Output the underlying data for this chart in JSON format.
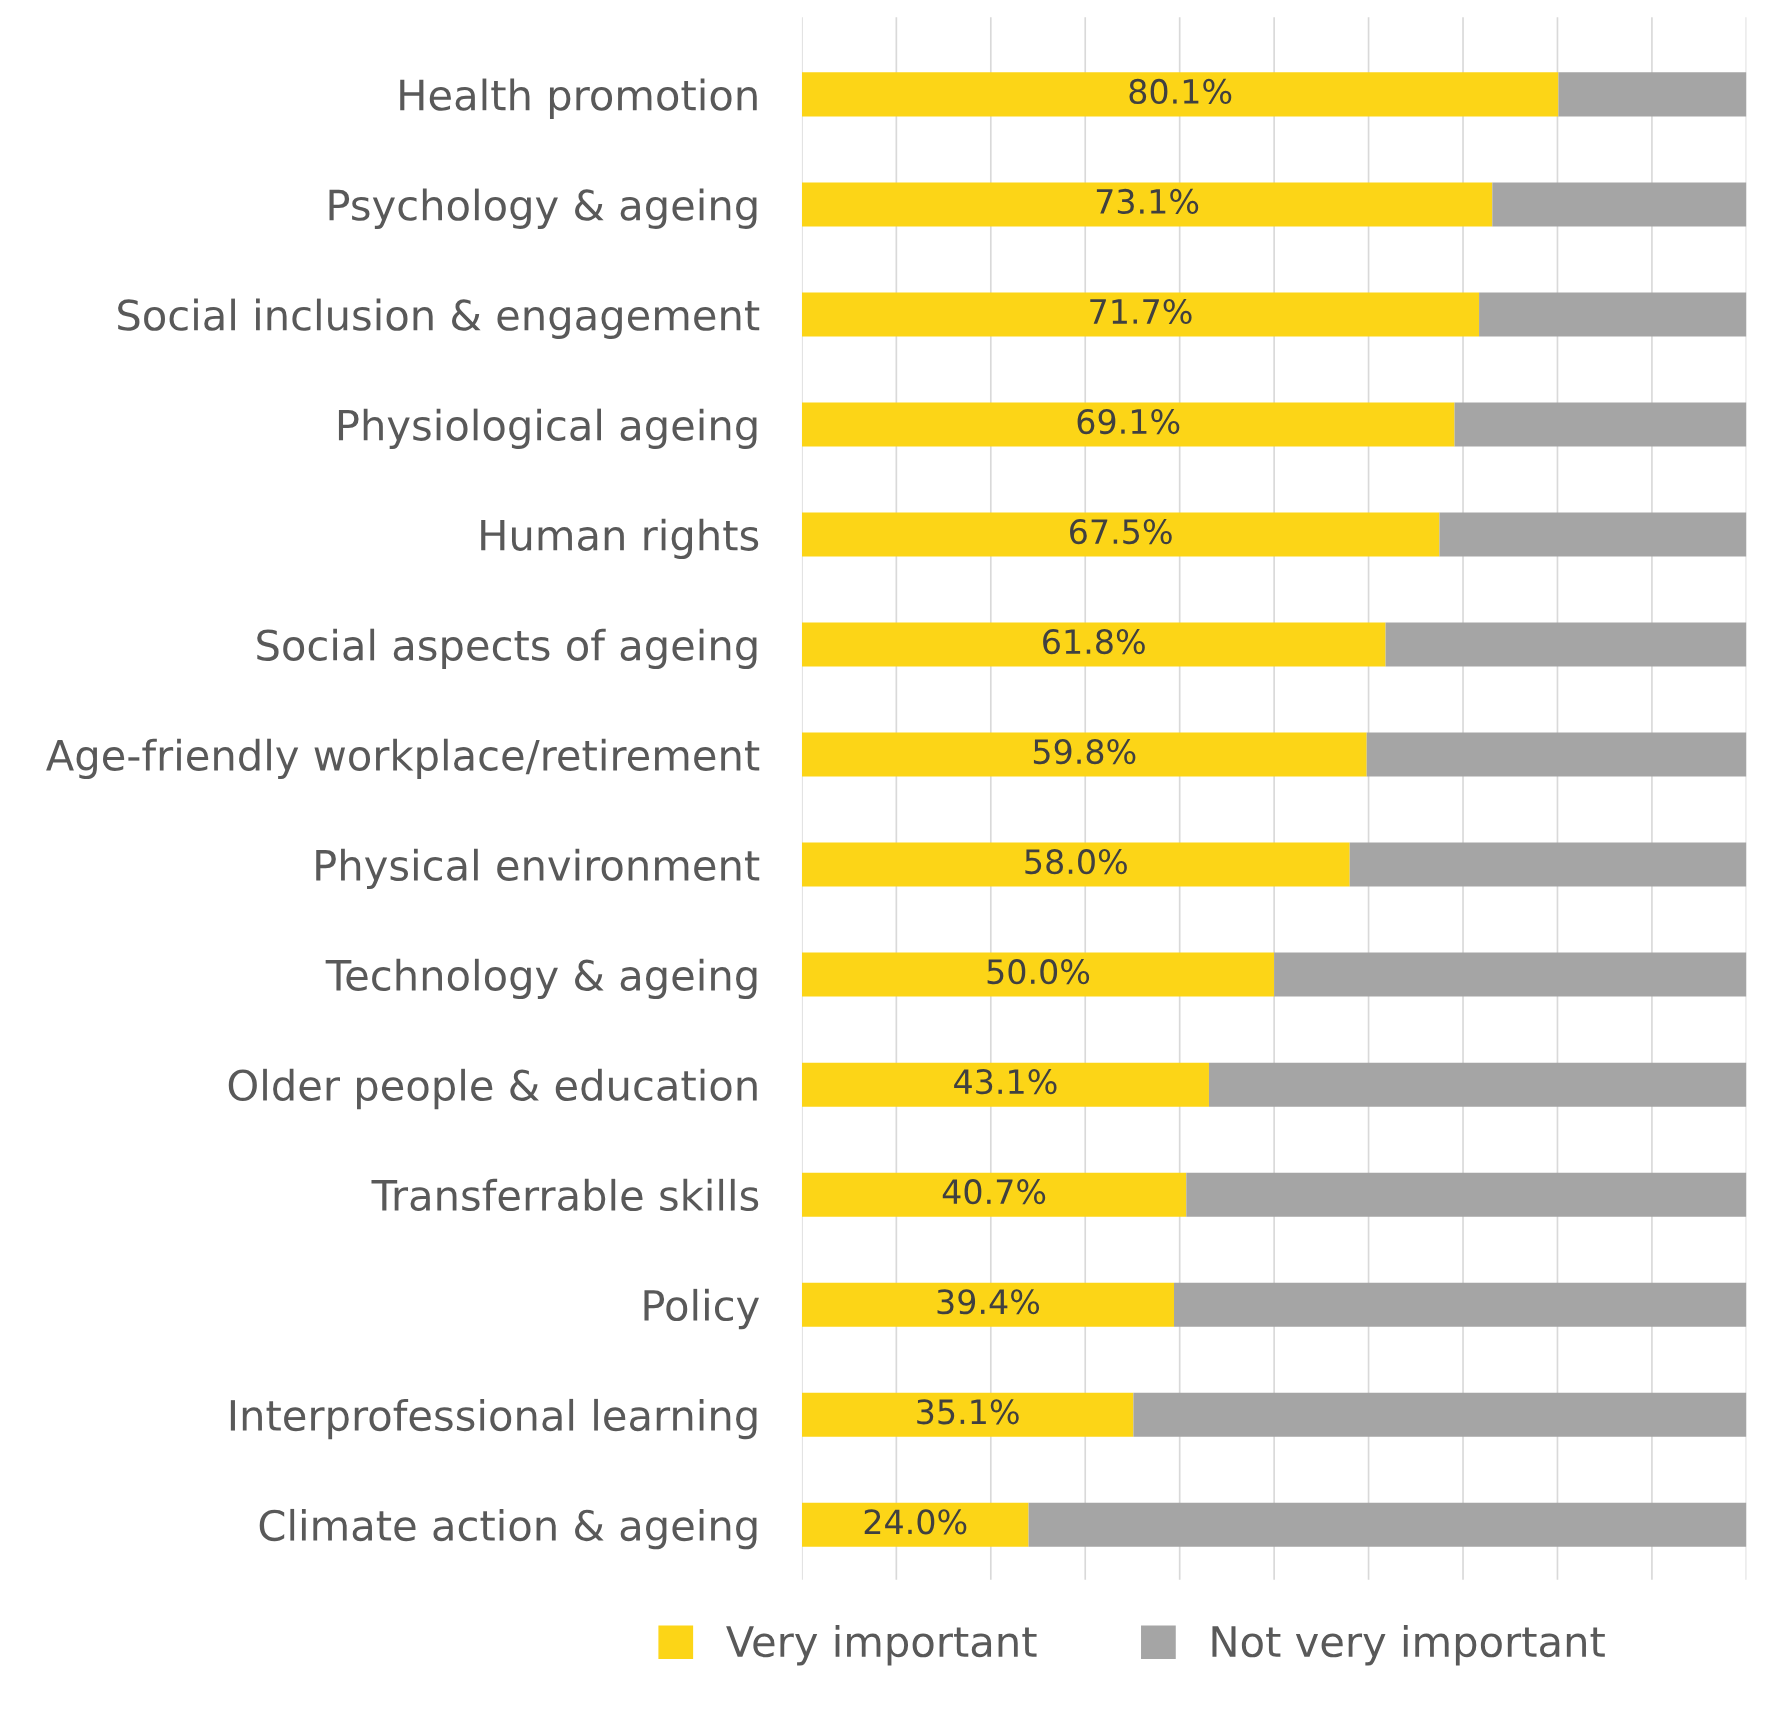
{
  "chart_data": {
    "type": "bar",
    "orientation": "horizontal",
    "stacked": true,
    "categories": [
      "Health promotion",
      "Psychology & ageing",
      "Social inclusion & engagement",
      "Physiological ageing",
      "Human rights",
      "Social aspects of ageing",
      "Age-friendly workplace/retirement",
      "Physical environment",
      "Technology & ageing",
      "Older people & education",
      "Transferrable skills",
      "Policy",
      "Interprofessional learning",
      "Climate action & ageing"
    ],
    "series": [
      {
        "name": "Very important",
        "color": "#fcd517",
        "values": [
          80.1,
          73.1,
          71.7,
          69.1,
          67.5,
          61.8,
          59.8,
          58.0,
          50.0,
          43.1,
          40.7,
          39.4,
          35.1,
          24.0
        ],
        "value_labels": [
          "80.1%",
          "73.1%",
          "71.7%",
          "69.1%",
          "67.5%",
          "61.8%",
          "59.8%",
          "58.0%",
          "50.0%",
          "43.1%",
          "40.7%",
          "39.4%",
          "35.1%",
          "24.0%"
        ]
      },
      {
        "name": "Not very important",
        "color": "#a5a5a5",
        "values": [
          19.9,
          26.9,
          28.3,
          30.9,
          32.5,
          38.2,
          40.2,
          42.0,
          50.0,
          56.9,
          59.3,
          60.6,
          64.9,
          76.0
        ]
      }
    ],
    "xlim": [
      0,
      100
    ],
    "xticks": [
      {
        "value": 0,
        "label": null
      },
      {
        "value": 10,
        "label": null
      },
      {
        "value": 20,
        "label": null
      },
      {
        "value": 30,
        "label": null
      },
      {
        "value": 40,
        "label": null
      },
      {
        "value": 50,
        "label": null
      },
      {
        "value": 60,
        "label": null
      },
      {
        "value": 70,
        "label": null
      },
      {
        "value": 80,
        "label": null
      },
      {
        "value": 90,
        "label": null
      },
      {
        "value": 100,
        "label": null
      }
    ],
    "grid": "x",
    "legend": "bottom",
    "tick_labels": "y"
  }
}
